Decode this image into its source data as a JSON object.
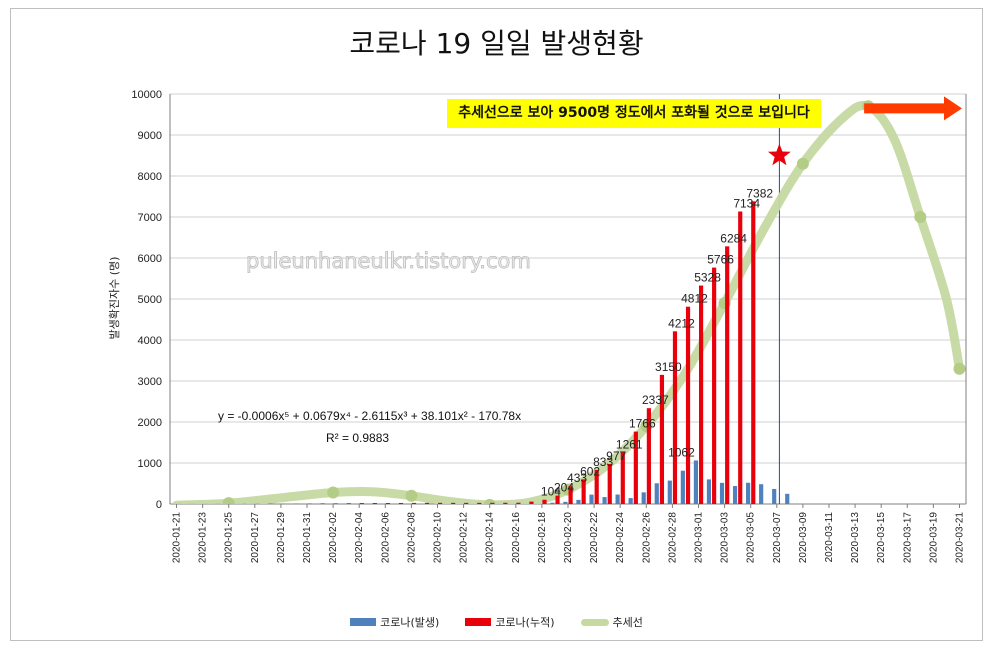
{
  "colors": {
    "daily": "#4f81bd",
    "cumulative": "#e8000b",
    "trend": "#c5d9a1",
    "annotation_bg": "#ffff00",
    "star": "#e8000b",
    "arrow": "#ff3b00"
  },
  "annotation": "추세선으로 보아 9500명 정도에서 포화될 것으로 보입니다",
  "watermark": "puleunhaneulkr.tistory.com",
  "equation": "y = -0.0006x⁵ + 0.0679x⁴ - 2.6115x³ + 38.101x² - 170.78x",
  "r_squared": "R² = 0.9883",
  "chart_data": {
    "type": "bar",
    "title": "코로나 19 일일 발생현황",
    "ylabel": "발생확진자수 (명)",
    "ylim": [
      0,
      10000
    ],
    "ytick_step": 1000,
    "grid": true,
    "legend_position": "bottom",
    "x_start": "2020-01-21",
    "x_end": "2020-03-21",
    "x_tick_labels": [
      "2020-01-21",
      "2020-01-23",
      "2020-01-25",
      "2020-01-27",
      "2020-01-29",
      "2020-01-31",
      "2020-02-02",
      "2020-02-04",
      "2020-02-06",
      "2020-02-08",
      "2020-02-10",
      "2020-02-12",
      "2020-02-14",
      "2020-02-16",
      "2020-02-18",
      "2020-02-20",
      "2020-02-22",
      "2020-02-24",
      "2020-02-26",
      "2020-02-28",
      "2020-03-01",
      "2020-03-03",
      "2020-03-05",
      "2020-03-07",
      "2020-03-09",
      "2020-03-11",
      "2020-03-13",
      "2020-03-15",
      "2020-03-17",
      "2020-03-19",
      "2020-03-21"
    ],
    "series": [
      {
        "name": "코로나(발생)",
        "type": "bar",
        "color": "#4f81bd",
        "values": [
          1,
          0,
          0,
          1,
          0,
          1,
          2,
          0,
          0,
          0,
          1,
          5,
          1,
          3,
          0,
          0,
          0,
          0,
          0,
          0,
          0,
          0,
          0,
          0,
          0,
          0,
          0,
          0,
          1,
          31,
          53,
          100,
          229,
          169,
          231,
          144,
          284,
          505,
          571,
          813,
          1062,
          600,
          516,
          438,
          518,
          483,
          367,
          248
        ]
      },
      {
        "name": "코로나(누적)",
        "type": "bar",
        "color": "#e8000b",
        "values": [
          1,
          1,
          1,
          2,
          2,
          3,
          4,
          4,
          4,
          4,
          11,
          15,
          16,
          19,
          23,
          24,
          24,
          25,
          27,
          28,
          28,
          28,
          28,
          28,
          29,
          30,
          31,
          58,
          104,
          204,
          433,
          602,
          833,
          977,
          1261,
          1766,
          2337,
          3150,
          4212,
          4812,
          5328,
          5766,
          6284,
          7134,
          7382
        ]
      },
      {
        "name": "추세선",
        "type": "trend",
        "color": "#c5d9a1"
      }
    ],
    "data_labels": [
      {
        "date": "2020-02-19",
        "label": "104"
      },
      {
        "date": "2020-02-20",
        "label": "204"
      },
      {
        "date": "2020-02-21",
        "label": "433"
      },
      {
        "date": "2020-02-22",
        "label": "602"
      },
      {
        "date": "2020-02-23",
        "label": "833"
      },
      {
        "date": "2020-02-24",
        "label": "977"
      },
      {
        "date": "2020-02-25",
        "label": "1261"
      },
      {
        "date": "2020-02-26",
        "label": "1766"
      },
      {
        "date": "2020-02-27",
        "label": "2337"
      },
      {
        "date": "2020-02-28",
        "label": "3150"
      },
      {
        "date": "2020-02-29",
        "label": "4212"
      },
      {
        "date": "2020-03-01",
        "label": "4812"
      },
      {
        "date": "2020-03-02",
        "label": "5328"
      },
      {
        "date": "2020-03-03",
        "label": "5766"
      },
      {
        "date": "2020-03-04",
        "label": "6284"
      },
      {
        "date": "2020-03-05",
        "label": "7134"
      },
      {
        "date": "2020-03-06",
        "label": "7382"
      },
      {
        "date": "2020-02-29",
        "label": "1062"
      }
    ],
    "trend_points": [
      {
        "date": "2020-01-21",
        "y": -30
      },
      {
        "date": "2020-01-25",
        "y": 20
      },
      {
        "date": "2020-01-29",
        "y": 150
      },
      {
        "date": "2020-02-02",
        "y": 280
      },
      {
        "date": "2020-02-05",
        "y": 300
      },
      {
        "date": "2020-02-08",
        "y": 200
      },
      {
        "date": "2020-02-11",
        "y": 60
      },
      {
        "date": "2020-02-14",
        "y": -20
      },
      {
        "date": "2020-02-17",
        "y": 40
      },
      {
        "date": "2020-02-20",
        "y": 350
      },
      {
        "date": "2020-02-23",
        "y": 950
      },
      {
        "date": "2020-02-26",
        "y": 1900
      },
      {
        "date": "2020-02-29",
        "y": 3200
      },
      {
        "date": "2020-03-03",
        "y": 4900
      },
      {
        "date": "2020-03-06",
        "y": 6700
      },
      {
        "date": "2020-03-09",
        "y": 8300
      },
      {
        "date": "2020-03-12",
        "y": 9400
      },
      {
        "date": "2020-03-14",
        "y": 9700
      },
      {
        "date": "2020-03-16",
        "y": 8900
      },
      {
        "date": "2020-03-18",
        "y": 7000
      },
      {
        "date": "2020-03-20",
        "y": 5000
      },
      {
        "date": "2020-03-21",
        "y": 3300
      }
    ],
    "today_marker_date": "2020-03-07",
    "star_marker": {
      "date": "2020-03-07",
      "y": 8500
    },
    "saturation_arrow": {
      "from_date": "2020-03-14",
      "to_date": "2020-03-21",
      "y": 9650
    }
  }
}
